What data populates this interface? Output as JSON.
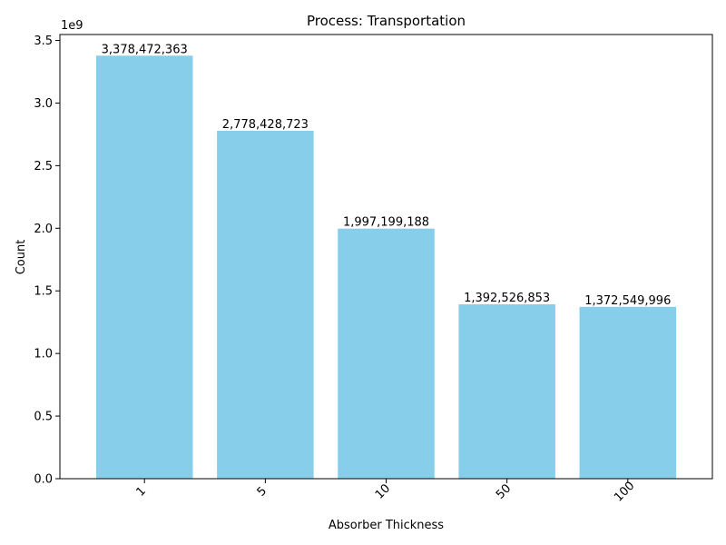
{
  "chart_data": {
    "type": "bar",
    "title": "Process: Transportation",
    "xlabel": "Absorber Thickness",
    "ylabel": "Count",
    "y_offset_text": "1e9",
    "categories": [
      "1",
      "5",
      "10",
      "50",
      "100"
    ],
    "values": [
      3378472363,
      2778428723,
      1997199188,
      1392526853,
      1372549996
    ],
    "value_labels": [
      "3,378,472,363",
      "2,778,428,723",
      "1,997,199,188",
      "1,392,526,853",
      "1,372,549,996"
    ],
    "ylim": [
      0,
      3547395981
    ],
    "yticks": [
      0,
      500000000,
      1000000000,
      1500000000,
      2000000000,
      2500000000,
      3000000000,
      3500000000
    ],
    "ytick_labels": [
      "0.0",
      "0.5",
      "1.0",
      "1.5",
      "2.0",
      "2.5",
      "3.0",
      "3.5"
    ],
    "grid": false,
    "legend": "none",
    "bar_color": "#87CEEB",
    "x_tick_rotation_deg": 45
  }
}
